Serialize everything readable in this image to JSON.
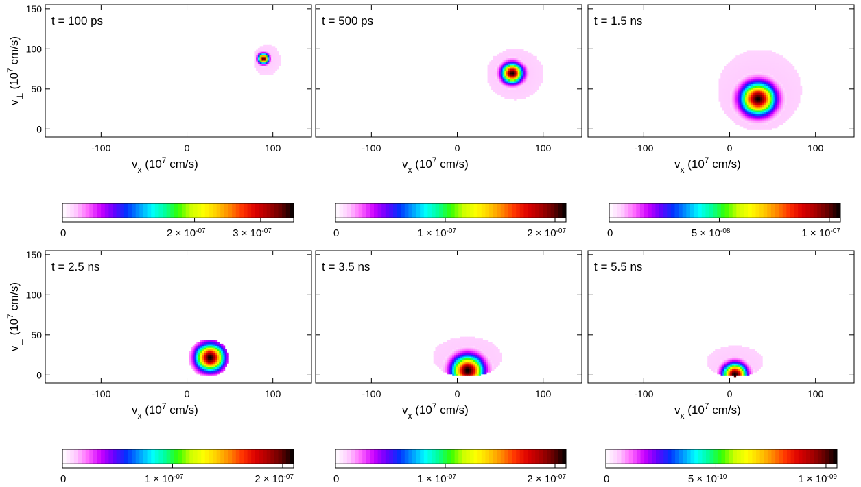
{
  "chart_data": [
    {
      "type": "heatmap",
      "title": "t = 100 ps",
      "xlabel": "v_x (10^7 cm/s)",
      "ylabel": "v_⊥ (10^7 cm/s)",
      "xlim": [
        -165,
        145
      ],
      "ylim": [
        -10,
        155
      ],
      "x_ticks": [
        -100,
        0,
        100
      ],
      "y_ticks": [
        0,
        50,
        100,
        150
      ],
      "peak": {
        "vx": 88,
        "vperp": 87
      },
      "spread": {
        "vx": 4,
        "vperp": 4
      },
      "support": {
        "vx_min": 76,
        "vx_max": 108,
        "vperp_min": 66,
        "vperp_max": 104
      },
      "colorbar": {
        "min": 0,
        "max": 3.5e-07,
        "ticks": [
          {
            "value": 0,
            "mant": "0",
            "exp": ""
          },
          {
            "value": 2e-07,
            "mant": "2 × 10",
            "exp": "-07"
          },
          {
            "value": 3e-07,
            "mant": "3 × 10",
            "exp": "-07"
          }
        ]
      }
    },
    {
      "type": "heatmap",
      "title": "t = 500 ps",
      "xlabel": "v_x (10^7 cm/s)",
      "ylabel": "",
      "xlim": [
        -165,
        145
      ],
      "ylim": [
        -10,
        155
      ],
      "x_ticks": [
        -100,
        0,
        100
      ],
      "y_ticks": [
        0,
        50,
        100,
        150
      ],
      "peak": {
        "vx": 63,
        "vperp": 69
      },
      "spread": {
        "vx": 8,
        "vperp": 8
      },
      "support": {
        "vx_min": 33,
        "vx_max": 99,
        "vperp_min": 36,
        "vperp_max": 99
      },
      "colorbar": {
        "min": 0,
        "max": 2.1e-07,
        "ticks": [
          {
            "value": 0,
            "mant": "0",
            "exp": ""
          },
          {
            "value": 1e-07,
            "mant": "1 × 10",
            "exp": "-07"
          },
          {
            "value": 2e-07,
            "mant": "2 × 10",
            "exp": "-07"
          }
        ]
      }
    },
    {
      "type": "heatmap",
      "title": "t = 1.5 ns",
      "xlabel": "v_x (10^7 cm/s)",
      "ylabel": "",
      "xlim": [
        -165,
        145
      ],
      "ylim": [
        -10,
        155
      ],
      "x_ticks": [
        -100,
        0,
        100
      ],
      "y_ticks": [
        0,
        50,
        100,
        150
      ],
      "peak": {
        "vx": 32,
        "vperp": 37
      },
      "spread": {
        "vx": 13,
        "vperp": 13
      },
      "support": {
        "vx_min": -15,
        "vx_max": 82,
        "vperp_min": -3,
        "vperp_max": 98
      },
      "colorbar": {
        "min": 0,
        "max": 1.05e-07,
        "ticks": [
          {
            "value": 0,
            "mant": "0",
            "exp": ""
          },
          {
            "value": 5e-08,
            "mant": "5 × 10",
            "exp": "-08"
          },
          {
            "value": 1e-07,
            "mant": "1 × 10",
            "exp": "-07"
          }
        ]
      }
    },
    {
      "type": "heatmap",
      "title": "t = 2.5 ns",
      "xlabel": "v_x (10^7 cm/s)",
      "ylabel": "v_⊥ (10^7 cm/s)",
      "xlim": [
        -165,
        145
      ],
      "ylim": [
        -10,
        155
      ],
      "x_ticks": [
        -100,
        0,
        100
      ],
      "y_ticks": [
        0,
        50,
        100,
        150
      ],
      "peak": {
        "vx": 26,
        "vperp": 21
      },
      "spread": {
        "vx": 11,
        "vperp": 11
      },
      "support": {
        "vx_min": 0,
        "vx_max": 47,
        "vperp_min": -3,
        "vperp_max": 43
      },
      "colorbar": {
        "min": 0,
        "max": 2.1e-07,
        "ticks": [
          {
            "value": 0,
            "mant": "0",
            "exp": ""
          },
          {
            "value": 1e-07,
            "mant": "1 × 10",
            "exp": "-07"
          },
          {
            "value": 2e-07,
            "mant": "2 × 10",
            "exp": "-07"
          }
        ]
      }
    },
    {
      "type": "heatmap",
      "title": "t = 3.5 ns",
      "xlabel": "v_x (10^7 cm/s)",
      "ylabel": "",
      "xlim": [
        -165,
        145
      ],
      "ylim": [
        -10,
        155
      ],
      "x_ticks": [
        -100,
        0,
        100
      ],
      "y_ticks": [
        0,
        50,
        100,
        150
      ],
      "peak": {
        "vx": 11,
        "vperp": 5
      },
      "spread": {
        "vx": 12,
        "vperp": 12
      },
      "support": {
        "vx_min": -30,
        "vx_max": 50,
        "vperp_min": -3,
        "vperp_max": 46
      },
      "colorbar": {
        "min": 0,
        "max": 2.1e-07,
        "ticks": [
          {
            "value": 0,
            "mant": "0",
            "exp": ""
          },
          {
            "value": 1e-07,
            "mant": "1 × 10",
            "exp": "-07"
          },
          {
            "value": 2e-07,
            "mant": "2 × 10",
            "exp": "-07"
          }
        ]
      }
    },
    {
      "type": "heatmap",
      "title": "t = 5.5 ns",
      "xlabel": "v_x (10^7 cm/s)",
      "ylabel": "",
      "xlim": [
        -165,
        145
      ],
      "ylim": [
        -10,
        155
      ],
      "x_ticks": [
        -100,
        0,
        100
      ],
      "y_ticks": [
        0,
        50,
        100,
        150
      ],
      "peak": {
        "vx": 5,
        "vperp": 0
      },
      "spread": {
        "vx": 9,
        "vperp": 9
      },
      "support": {
        "vx_min": -28,
        "vx_max": 38,
        "vperp_min": -3,
        "vperp_max": 35
      },
      "colorbar": {
        "min": 0,
        "max": 1.05e-09,
        "ticks": [
          {
            "value": 0,
            "mant": "0",
            "exp": ""
          },
          {
            "value": 5e-10,
            "mant": "5 × 10",
            "exp": "-10"
          },
          {
            "value": 1e-09,
            "mant": "1 × 10",
            "exp": "-09"
          }
        ]
      }
    }
  ],
  "colormap": [
    "#ffffff",
    "#ffccff",
    "#ff66ff",
    "#cc00ff",
    "#6600ff",
    "#0033ff",
    "#0099ff",
    "#00ffff",
    "#00ff99",
    "#33ff00",
    "#ccff00",
    "#ffff00",
    "#ffcc00",
    "#ff8800",
    "#ff3300",
    "#dd0000",
    "#aa0000",
    "#660000",
    "#000000"
  ]
}
